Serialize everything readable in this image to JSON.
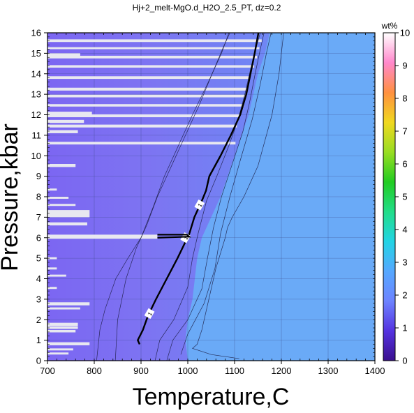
{
  "chart_data": {
    "type": "heatmap",
    "title": "Hj+2_melt-MgO.d_H2O_2.5_PT, dz=0.2",
    "xlabel": "Temperature,C",
    "ylabel": "Pressure,kbar",
    "xlim": [
      700,
      1400
    ],
    "ylim": [
      0,
      16
    ],
    "x_ticks": [
      "700",
      "800",
      "900",
      "1000",
      "1100",
      "1200",
      "1300",
      "1400"
    ],
    "y_ticks": [
      "0",
      "1",
      "2",
      "3",
      "4",
      "5",
      "6",
      "7",
      "8",
      "9",
      "10",
      "11",
      "12",
      "13",
      "14",
      "15",
      "16"
    ],
    "grid": true,
    "colorbar": {
      "label": "wt%",
      "range": [
        0,
        10
      ],
      "ticks": [
        "0",
        "1",
        "2",
        "3",
        "4",
        "5",
        "6",
        "7",
        "8",
        "9",
        "10"
      ],
      "colors": [
        "#3a0f8f",
        "#5533e0",
        "#6d83ff",
        "#55a8ff",
        "#22d4e4",
        "#22dd88",
        "#22cc22",
        "#99dd22",
        "#f0d820",
        "#ff9040",
        "#ff88cc",
        "#ffffff"
      ]
    },
    "background_fields": [
      {
        "region": "T > ~1120-1200 C",
        "value": 1.2,
        "color": "#6aaaf7"
      },
      {
        "region": "T < ~1000 C",
        "value": 0.5,
        "color": "#8470f2"
      }
    ],
    "contours": [
      {
        "level": "1",
        "points": [
          [
            897,
            0.8
          ],
          [
            893,
            1.0
          ],
          [
            904,
            1.5
          ],
          [
            915,
            2.2
          ],
          [
            932,
            3.0
          ],
          [
            955,
            4.0
          ],
          [
            978,
            5.0
          ],
          [
            995,
            5.8
          ],
          [
            1002,
            6.1
          ],
          [
            1014,
            7.0
          ],
          [
            1030,
            7.8
          ],
          [
            1039,
            8.3
          ],
          [
            1046,
            9.0
          ],
          [
            1070,
            10.0
          ],
          [
            1092,
            11.0
          ],
          [
            1112,
            12.0
          ],
          [
            1125,
            13.0
          ],
          [
            1134,
            14.0
          ],
          [
            1143,
            15.0
          ],
          [
            1151,
            16.0
          ]
        ],
        "labels": [
          [
            918,
            2.3
          ],
          [
            995,
            6.0
          ],
          [
            1025,
            7.6
          ]
        ]
      },
      {
        "level": "",
        "points": [
          [
            930,
            0
          ],
          [
            940,
            1
          ],
          [
            970,
            2
          ],
          [
            1000,
            3.6
          ],
          [
            1010,
            5
          ],
          [
            1022,
            6.2
          ],
          [
            1040,
            7.8
          ],
          [
            1062,
            9
          ],
          [
            1088,
            10.5
          ],
          [
            1108,
            11.8
          ],
          [
            1122,
            13
          ],
          [
            1134,
            14.2
          ],
          [
            1145,
            15.2
          ],
          [
            1155,
            16
          ]
        ]
      },
      {
        "level": "",
        "points": [
          [
            955,
            0
          ],
          [
            968,
            1
          ],
          [
            1000,
            2
          ],
          [
            1030,
            3.5
          ],
          [
            1042,
            5
          ],
          [
            1055,
            6.5
          ],
          [
            1072,
            8
          ],
          [
            1098,
            9.8
          ],
          [
            1118,
            11.2
          ],
          [
            1132,
            12.6
          ],
          [
            1144,
            14
          ],
          [
            1155,
            15.2
          ],
          [
            1163,
            16
          ]
        ]
      },
      {
        "level": "",
        "points": [
          [
            985,
            0.3
          ],
          [
            1000,
            1.3
          ],
          [
            1035,
            2.8
          ],
          [
            1058,
            4.5
          ],
          [
            1070,
            6.2
          ],
          [
            1090,
            8
          ],
          [
            1115,
            10
          ],
          [
            1138,
            11.8
          ],
          [
            1155,
            13.5
          ],
          [
            1168,
            15
          ],
          [
            1178,
            16
          ]
        ]
      },
      {
        "level": "",
        "points": [
          [
            845,
            0
          ],
          [
            850,
            2
          ],
          [
            868,
            4
          ],
          [
            890,
            5.5
          ],
          [
            912,
            6.6
          ],
          [
            935,
            8
          ],
          [
            965,
            9.5
          ],
          [
            995,
            11
          ],
          [
            1025,
            12.5
          ],
          [
            1052,
            14
          ],
          [
            1076,
            15.3
          ],
          [
            1090,
            16
          ]
        ]
      },
      {
        "level": "",
        "points": [
          [
            805,
            0
          ],
          [
            812,
            1.5
          ],
          [
            823,
            2.5
          ],
          [
            846,
            4
          ],
          [
            872,
            5
          ],
          [
            900,
            6
          ],
          [
            926,
            7.5
          ],
          [
            950,
            9
          ],
          [
            980,
            10.5
          ],
          [
            1010,
            12
          ],
          [
            1042,
            13.5
          ],
          [
            1072,
            15
          ],
          [
            1088,
            16
          ]
        ]
      },
      {
        "level": "",
        "points": [
          [
            1205,
            16
          ],
          [
            1195,
            14
          ],
          [
            1180,
            12
          ],
          [
            1168,
            11
          ],
          [
            1150,
            9.5
          ],
          [
            1120,
            8
          ],
          [
            1095,
            7
          ],
          [
            1085,
            6.5
          ],
          [
            1080,
            6
          ],
          [
            1060,
            4.5
          ],
          [
            1045,
            3
          ],
          [
            1030,
            1.5
          ],
          [
            1020,
            0.8
          ],
          [
            1010,
            0.6
          ],
          [
            1050,
            0.3
          ],
          [
            1110,
            0.1
          ]
        ]
      }
    ],
    "missing_data_bars": [
      [
        5.95,
        6.15,
        700,
        935
      ],
      [
        11.88,
        12.02,
        700,
        1110
      ],
      [
        11.38,
        11.52,
        700,
        1105
      ],
      [
        12.4,
        12.52,
        700,
        1120
      ],
      [
        12.85,
        12.98,
        700,
        1125
      ],
      [
        13.18,
        13.32,
        700,
        1128
      ],
      [
        13.75,
        13.88,
        700,
        1132
      ],
      [
        14.3,
        14.42,
        700,
        1142
      ],
      [
        14.75,
        14.88,
        700,
        1148
      ],
      [
        15.2,
        15.3,
        700,
        1153
      ],
      [
        15.55,
        15.68,
        700,
        1158
      ],
      [
        10.55,
        10.68,
        700,
        1102
      ],
      [
        11.1,
        11.25,
        700,
        765
      ],
      [
        11.6,
        11.75,
        700,
        778
      ],
      [
        12.0,
        12.15,
        700,
        795
      ],
      [
        14.85,
        15.0,
        700,
        770
      ],
      [
        7.0,
        7.35,
        700,
        790
      ],
      [
        6.6,
        6.75,
        700,
        785
      ],
      [
        7.55,
        7.65,
        700,
        760
      ],
      [
        2.7,
        2.85,
        700,
        790
      ],
      [
        2.5,
        2.6,
        700,
        770
      ],
      [
        1.7,
        1.85,
        700,
        765
      ],
      [
        1.55,
        1.68,
        700,
        765
      ],
      [
        1.38,
        1.5,
        700,
        760
      ],
      [
        0.75,
        0.9,
        700,
        790
      ],
      [
        0.5,
        0.6,
        700,
        755
      ],
      [
        0.3,
        0.4,
        700,
        745
      ],
      [
        9.45,
        9.6,
        700,
        760
      ],
      [
        8.3,
        8.4,
        700,
        720
      ],
      [
        7.9,
        8.0,
        700,
        745
      ],
      [
        4.95,
        5.05,
        700,
        720
      ],
      [
        4.45,
        4.55,
        700,
        720
      ],
      [
        3.5,
        3.6,
        700,
        720
      ],
      [
        4.1,
        4.2,
        700,
        740
      ]
    ]
  }
}
